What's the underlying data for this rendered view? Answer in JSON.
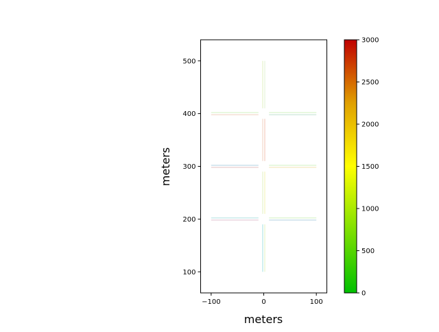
{
  "chart_data": {
    "type": "line",
    "title": "",
    "xlabel": "meters",
    "ylabel": "meters",
    "xlim": [
      -120,
      120
    ],
    "ylim": [
      60,
      540
    ],
    "xticks": [
      -100,
      0,
      100
    ],
    "yticks": [
      100,
      200,
      300,
      400,
      500
    ],
    "xtick_labels": [
      "−100",
      "0",
      "100"
    ],
    "ytick_labels": [
      "100",
      "200",
      "300",
      "400",
      "500"
    ],
    "grid": false,
    "colorbar": {
      "range": [
        0,
        3000
      ],
      "ticks": [
        0,
        500,
        1000,
        1500,
        2000,
        2500,
        3000
      ],
      "tick_labels": [
        "0",
        "500",
        "1000",
        "1500",
        "2000",
        "2500",
        "3000"
      ],
      "colors": [
        "#00c000",
        "#80e000",
        "#ffff00",
        "#e0a000",
        "#c00000"
      ]
    },
    "series": [
      {
        "x": [
          -2,
          -2
        ],
        "y": [
          100,
          190
        ],
        "color": "#a0e0e0"
      },
      {
        "x": [
          2,
          2
        ],
        "y": [
          100,
          190
        ],
        "color": "#e0f0c0"
      },
      {
        "x": [
          -2,
          -2
        ],
        "y": [
          210,
          290
        ],
        "color": "#e0f0c0"
      },
      {
        "x": [
          2,
          2
        ],
        "y": [
          210,
          290
        ],
        "color": "#f0f0b0"
      },
      {
        "x": [
          -2,
          -2
        ],
        "y": [
          310,
          390
        ],
        "color": "#f0d0c0"
      },
      {
        "x": [
          2,
          2
        ],
        "y": [
          310,
          390
        ],
        "color": "#f0c0b0"
      },
      {
        "x": [
          -2,
          -2
        ],
        "y": [
          410,
          500
        ],
        "color": "#e0f0c0"
      },
      {
        "x": [
          2,
          2
        ],
        "y": [
          410,
          500
        ],
        "color": "#e0f0d0"
      },
      {
        "x": [
          -100,
          -10
        ],
        "y": [
          402,
          402
        ],
        "color": "#d0f0c0"
      },
      {
        "x": [
          -100,
          -10
        ],
        "y": [
          398,
          398
        ],
        "color": "#f0d0c0"
      },
      {
        "x": [
          10,
          100
        ],
        "y": [
          402,
          402
        ],
        "color": "#d0f0c0"
      },
      {
        "x": [
          10,
          100
        ],
        "y": [
          398,
          398
        ],
        "color": "#c0e0d0"
      },
      {
        "x": [
          -100,
          -10
        ],
        "y": [
          302,
          302
        ],
        "color": "#b0d0e0"
      },
      {
        "x": [
          -100,
          -10
        ],
        "y": [
          298,
          298
        ],
        "color": "#e0c0c0"
      },
      {
        "x": [
          10,
          100
        ],
        "y": [
          302,
          302
        ],
        "color": "#d0f0c0"
      },
      {
        "x": [
          10,
          100
        ],
        "y": [
          298,
          298
        ],
        "color": "#f0e0b0"
      },
      {
        "x": [
          -100,
          -10
        ],
        "y": [
          202,
          202
        ],
        "color": "#b0e0e0"
      },
      {
        "x": [
          -100,
          -10
        ],
        "y": [
          198,
          198
        ],
        "color": "#e0c0d0"
      },
      {
        "x": [
          10,
          100
        ],
        "y": [
          202,
          202
        ],
        "color": "#d0f0c0"
      },
      {
        "x": [
          10,
          100
        ],
        "y": [
          198,
          198
        ],
        "color": "#b0d0e0"
      }
    ]
  }
}
